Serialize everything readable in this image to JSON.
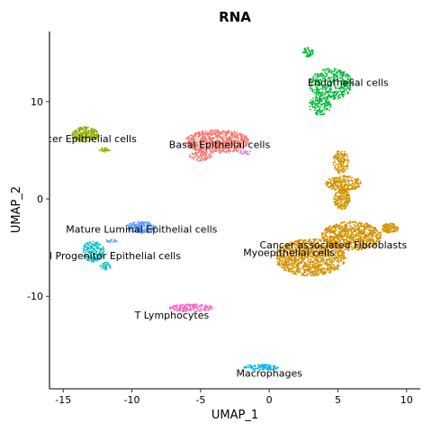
{
  "chart_data": {
    "type": "scatter",
    "title": "RNA",
    "xlabel": "UMAP_1",
    "ylabel": "UMAP_2",
    "xlim": [
      -16,
      11
    ],
    "ylim": [
      -19.5,
      17.2
    ],
    "xticks": [
      -15,
      -10,
      -5,
      0,
      5,
      10
    ],
    "yticks": [
      -10,
      0,
      10
    ],
    "grid": false,
    "legend": "none",
    "clusters": [
      {
        "label": "Endothelial cells",
        "color": "#00BA38",
        "label_x": 2.8,
        "label_y": 12.0,
        "blobs": [
          {
            "x": 4.5,
            "y": 11.8,
            "rx": 1.6,
            "ry": 1.6,
            "n": 420
          },
          {
            "x": 3.7,
            "y": 9.6,
            "rx": 0.8,
            "ry": 1.0,
            "n": 150
          },
          {
            "x": 2.8,
            "y": 15.1,
            "rx": 0.4,
            "ry": 0.5,
            "n": 50
          }
        ]
      },
      {
        "label": "cer Epithelial cells",
        "color": "#93AA00",
        "label_x": -16.2,
        "label_y": 6.2,
        "blobs": [
          {
            "x": -13.4,
            "y": 6.6,
            "rx": 1.0,
            "ry": 0.8,
            "n": 240
          },
          {
            "x": -12.0,
            "y": 5.0,
            "rx": 0.4,
            "ry": 0.3,
            "n": 25
          }
        ]
      },
      {
        "label": "Basal Epithelial cells",
        "color": "#F8766D",
        "label_x": -7.3,
        "label_y": 5.6,
        "blobs": [
          {
            "x": -3.8,
            "y": 5.9,
            "rx": 2.4,
            "ry": 1.2,
            "n": 700
          },
          {
            "x": -5.0,
            "y": 4.4,
            "rx": 0.8,
            "ry": 0.5,
            "n": 80
          }
        ]
      },
      {
        "label": "Mature Luminal Epithelial cells",
        "color": "#619CFF",
        "label_x": -14.8,
        "label_y": -3.1,
        "blobs": [
          {
            "x": -9.3,
            "y": -2.9,
            "rx": 1.1,
            "ry": 0.6,
            "n": 200
          },
          {
            "x": -11.5,
            "y": -4.3,
            "rx": 0.4,
            "ry": 0.2,
            "n": 20
          }
        ]
      },
      {
        "label": "l Progenitor Epithelial cells",
        "color": "#00BFC4",
        "label_x": -16.0,
        "label_y": -5.8,
        "blobs": [
          {
            "x": -12.8,
            "y": -5.4,
            "rx": 0.8,
            "ry": 1.1,
            "n": 180
          },
          {
            "x": -11.9,
            "y": -6.9,
            "rx": 0.4,
            "ry": 0.4,
            "n": 40
          }
        ]
      },
      {
        "label": "Cancer associated Fibroblasts",
        "color": "#D39200",
        "label_x": -0.7,
        "label_y": -4.7,
        "blobs": [
          {
            "x": 3.0,
            "y": -6.0,
            "rx": 2.6,
            "ry": 1.9,
            "n": 1100
          },
          {
            "x": 6.0,
            "y": -3.8,
            "rx": 2.2,
            "ry": 1.5,
            "n": 800
          },
          {
            "x": 8.8,
            "y": -3.0,
            "rx": 0.6,
            "ry": 0.5,
            "n": 120
          },
          {
            "x": 5.3,
            "y": 0.0,
            "rx": 0.6,
            "ry": 1.1,
            "n": 200
          },
          {
            "x": 5.4,
            "y": 1.6,
            "rx": 1.3,
            "ry": 0.8,
            "n": 260
          },
          {
            "x": 5.2,
            "y": 3.8,
            "rx": 0.6,
            "ry": 1.2,
            "n": 160
          }
        ]
      },
      {
        "label": "Myoepithelial cells",
        "color": "#DB72FB",
        "label_x": -1.9,
        "label_y": -5.5,
        "blobs": [
          {
            "x": -1.8,
            "y": 4.8,
            "rx": 0.5,
            "ry": 0.2,
            "n": 20
          }
        ]
      },
      {
        "label": "T Lymphocytes",
        "color": "#FF61C3",
        "label_x": -9.8,
        "label_y": -11.9,
        "blobs": [
          {
            "x": -5.7,
            "y": -11.2,
            "rx": 1.6,
            "ry": 0.4,
            "n": 160
          }
        ]
      },
      {
        "label": "Macrophages",
        "color": "#00B9E3",
        "label_x": -2.4,
        "label_y": -17.9,
        "blobs": [
          {
            "x": -0.6,
            "y": -17.3,
            "rx": 1.3,
            "ry": 0.3,
            "n": 110
          }
        ]
      }
    ]
  }
}
